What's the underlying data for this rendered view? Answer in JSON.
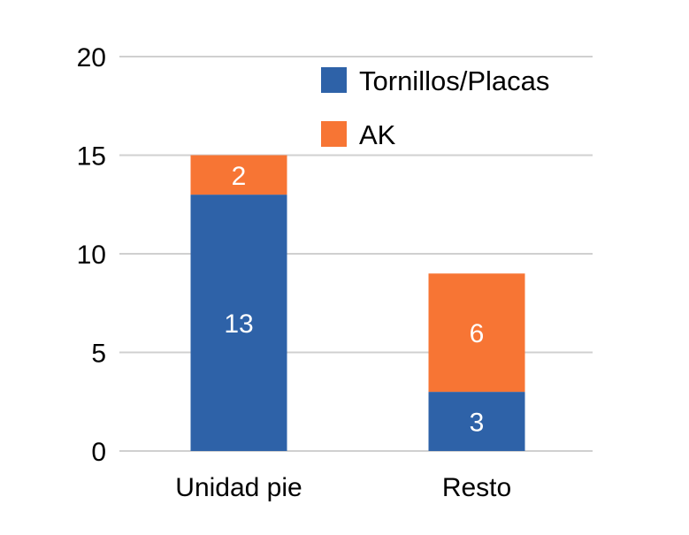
{
  "chart_data": {
    "type": "bar",
    "stacked": true,
    "categories": [
      "Unidad pie",
      "Resto"
    ],
    "series": [
      {
        "name": "Tornillos/Placas",
        "values": [
          13,
          3
        ],
        "color": "#2e62a8"
      },
      {
        "name": "AK",
        "values": [
          2,
          6
        ],
        "color": "#f77534"
      }
    ],
    "ylim": [
      0,
      20
    ],
    "yticks": [
      0,
      5,
      10,
      15,
      20
    ],
    "grid": true,
    "legend": "top-right",
    "data_labels": true
  }
}
